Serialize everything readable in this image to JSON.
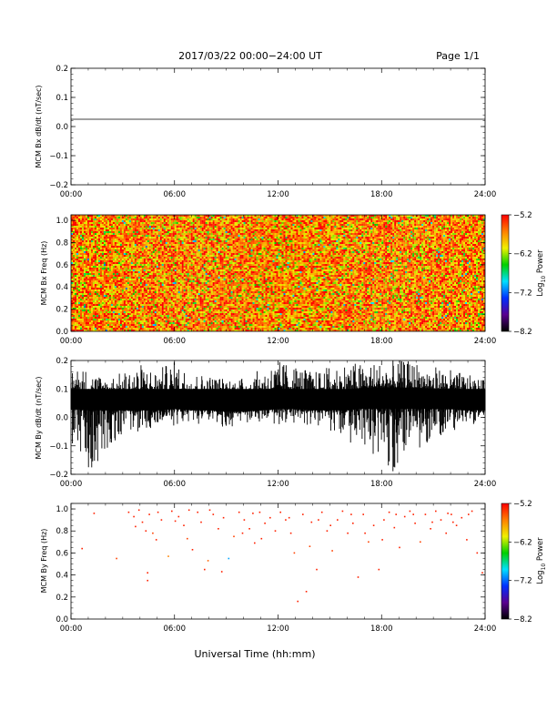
{
  "header": {
    "title": "2017/03/22  00:00−24:00 UT",
    "page": "Page 1/1"
  },
  "xaxis": {
    "label": "Universal Time (hh:mm)",
    "range": [
      0,
      24
    ],
    "tick_values": [
      0,
      6,
      12,
      18,
      24
    ],
    "ticks": [
      "00:00",
      "06:00",
      "12:00",
      "18:00",
      "24:00"
    ]
  },
  "colorbar": {
    "label_main": "Log",
    "label_sub": "10",
    "label_tail": " Power",
    "range": [
      -8.2,
      -5.2
    ],
    "tick_values": [
      -5.2,
      -6.2,
      -7.2,
      -8.2
    ],
    "ticks": [
      "−5.2",
      "−6.2",
      "−7.2",
      "−8.2"
    ],
    "colors": [
      "#000000",
      "#5a0090",
      "#0030ff",
      "#00e0ff",
      "#00d000",
      "#f0f000",
      "#ff8000",
      "#ff0000"
    ]
  },
  "chart_data": [
    {
      "type": "line",
      "title": "",
      "ylabel": "MCM Bx dB/dt (nT/sec)",
      "xlabel": "",
      "xlim": [
        0,
        24
      ],
      "ylim": [
        -0.2,
        0.2
      ],
      "ytick_values": [
        0.2,
        0.1,
        0.0,
        -0.1,
        -0.2
      ],
      "yticks": [
        "0.2",
        "0.1",
        "0.0",
        "−0.1",
        "−0.2"
      ],
      "series": [
        {
          "x": [
            0,
            24
          ],
          "y": [
            0.025,
            0.025
          ]
        }
      ]
    },
    {
      "type": "heatmap",
      "title": "",
      "ylabel": "MCM Bx Freq (Hz)",
      "xlabel": "",
      "xlim": [
        0,
        24
      ],
      "ylim": [
        0,
        1.05
      ],
      "ytick_values": [
        1.0,
        0.8,
        0.6,
        0.4,
        0.2,
        0.0
      ],
      "yticks": [
        "1.0",
        "0.8",
        "0.6",
        "0.4",
        "0.2",
        "0.0"
      ],
      "value_range": [
        -8.2,
        -5.2
      ],
      "description_levels": {
        "dominant_log10_power": -5.6,
        "spread": 0.5
      }
    },
    {
      "type": "line",
      "title": "",
      "ylabel": "MCM By dB/dt (nT/sec)",
      "xlabel": "",
      "xlim": [
        0,
        24
      ],
      "ylim": [
        -0.2,
        0.2
      ],
      "ytick_values": [
        0.2,
        0.1,
        0.0,
        -0.1,
        -0.2
      ],
      "yticks": [
        "0.2",
        "0.1",
        "0.0",
        "−0.1",
        "−0.2"
      ],
      "series": [
        {
          "x": [
            0,
            1,
            2,
            3,
            4,
            5,
            6,
            7,
            8,
            9,
            10,
            11,
            12,
            13,
            14,
            15,
            16,
            17,
            18,
            19,
            20,
            21,
            22,
            23,
            24
          ],
          "y_mean": [
            0.065,
            0.06,
            0.06,
            0.06,
            0.06,
            0.06,
            0.065,
            0.06,
            0.06,
            0.055,
            0.055,
            0.06,
            0.065,
            0.065,
            0.06,
            0.06,
            0.06,
            0.07,
            0.07,
            0.07,
            0.07,
            0.065,
            0.065,
            0.06,
            0.06
          ],
          "y_max": [
            0.19,
            0.17,
            0.14,
            0.16,
            0.19,
            0.17,
            0.2,
            0.16,
            0.15,
            0.14,
            0.14,
            0.17,
            0.2,
            0.19,
            0.16,
            0.18,
            0.2,
            0.19,
            0.2,
            0.2,
            0.2,
            0.18,
            0.17,
            0.15,
            0.13
          ],
          "y_min": [
            -0.1,
            -0.2,
            -0.12,
            -0.06,
            -0.05,
            -0.04,
            -0.03,
            -0.02,
            -0.03,
            -0.04,
            -0.02,
            -0.02,
            -0.03,
            -0.02,
            -0.03,
            -0.05,
            -0.08,
            -0.12,
            -0.2,
            -0.2,
            -0.12,
            -0.08,
            -0.05,
            -0.03,
            -0.02
          ]
        }
      ]
    },
    {
      "type": "scatter",
      "title": "",
      "ylabel": "MCM By Freq (Hz)",
      "xlabel": "",
      "xlim": [
        0,
        24
      ],
      "ylim": [
        0,
        1.05
      ],
      "ytick_values": [
        1.0,
        0.8,
        0.6,
        0.4,
        0.2,
        0.0
      ],
      "yticks": [
        "1.0",
        "0.8",
        "0.6",
        "0.4",
        "0.2",
        "0.0"
      ],
      "value_range": [
        -8.2,
        -5.2
      ],
      "points": [
        [
          0.6,
          0.64,
          -5.3
        ],
        [
          1.3,
          0.96,
          -5.3
        ],
        [
          2.6,
          0.55,
          -5.4
        ],
        [
          3.3,
          0.97,
          -5.3
        ],
        [
          3.6,
          0.93,
          -5.3
        ],
        [
          3.9,
          0.99,
          -5.3
        ],
        [
          4.1,
          0.88,
          -5.3
        ],
        [
          4.3,
          0.8,
          -5.3
        ],
        [
          4.5,
          0.95,
          -5.3
        ],
        [
          4.7,
          0.78,
          -5.4
        ],
        [
          4.9,
          0.72,
          -5.3
        ],
        [
          5.2,
          0.9,
          -5.3
        ],
        [
          4.4,
          0.42,
          -5.3
        ],
        [
          4.4,
          0.35,
          -5.3
        ],
        [
          5.6,
          0.57,
          -5.6
        ],
        [
          5.8,
          0.98,
          -5.3
        ],
        [
          6.2,
          0.93,
          -5.3
        ],
        [
          6.5,
          0.85,
          -5.3
        ],
        [
          6.7,
          0.73,
          -5.4
        ],
        [
          7.0,
          0.63,
          -5.3
        ],
        [
          7.3,
          0.97,
          -5.3
        ],
        [
          7.5,
          0.88,
          -5.3
        ],
        [
          7.7,
          0.45,
          -5.3
        ],
        [
          7.9,
          0.53,
          -5.5
        ],
        [
          8.2,
          0.95,
          -5.3
        ],
        [
          8.5,
          0.82,
          -5.3
        ],
        [
          8.8,
          0.92,
          -5.3
        ],
        [
          9.1,
          0.55,
          -7.0
        ],
        [
          9.4,
          0.75,
          -5.4
        ],
        [
          9.7,
          0.97,
          -5.3
        ],
        [
          10.0,
          0.9,
          -5.3
        ],
        [
          10.3,
          0.82,
          -5.3
        ],
        [
          10.6,
          0.69,
          -5.3
        ],
        [
          10.9,
          0.97,
          -5.3
        ],
        [
          11.2,
          0.87,
          -5.3
        ],
        [
          11.5,
          0.92,
          -5.3
        ],
        [
          11.8,
          0.8,
          -5.3
        ],
        [
          12.1,
          0.97,
          -5.3
        ],
        [
          12.4,
          0.9,
          -5.3
        ],
        [
          12.7,
          0.78,
          -5.3
        ],
        [
          12.9,
          0.6,
          -5.4
        ],
        [
          13.1,
          0.16,
          -5.3
        ],
        [
          13.4,
          0.95,
          -5.3
        ],
        [
          13.6,
          0.25,
          -5.3
        ],
        [
          13.9,
          0.88,
          -5.3
        ],
        [
          14.2,
          0.45,
          -5.3
        ],
        [
          14.5,
          0.97,
          -5.3
        ],
        [
          14.8,
          0.8,
          -5.3
        ],
        [
          15.1,
          0.62,
          -5.4
        ],
        [
          15.4,
          0.9,
          -5.3
        ],
        [
          15.7,
          0.98,
          -5.3
        ],
        [
          16.0,
          0.78,
          -5.3
        ],
        [
          16.3,
          0.87,
          -5.3
        ],
        [
          16.6,
          0.38,
          -5.3
        ],
        [
          16.9,
          0.95,
          -5.3
        ],
        [
          17.2,
          0.7,
          -5.4
        ],
        [
          17.5,
          0.85,
          -5.3
        ],
        [
          17.8,
          0.45,
          -5.3
        ],
        [
          18.1,
          0.9,
          -5.3
        ],
        [
          18.4,
          0.97,
          -5.3
        ],
        [
          18.7,
          0.83,
          -5.3
        ],
        [
          19.0,
          0.65,
          -5.3
        ],
        [
          19.3,
          0.93,
          -5.3
        ],
        [
          19.6,
          0.98,
          -5.3
        ],
        [
          19.9,
          0.87,
          -5.3
        ],
        [
          20.2,
          0.7,
          -5.4
        ],
        [
          20.5,
          0.95,
          -5.3
        ],
        [
          20.8,
          0.82,
          -5.3
        ],
        [
          21.1,
          0.98,
          -5.3
        ],
        [
          21.4,
          0.9,
          -5.3
        ],
        [
          21.7,
          0.78,
          -5.3
        ],
        [
          22.0,
          0.95,
          -5.3
        ],
        [
          22.3,
          0.85,
          -5.3
        ],
        [
          22.6,
          0.92,
          -5.3
        ],
        [
          22.9,
          0.72,
          -5.3
        ],
        [
          23.2,
          0.98,
          -5.3
        ],
        [
          23.5,
          0.6,
          -5.3
        ],
        [
          23.8,
          0.42,
          -5.3
        ],
        [
          5.0,
          0.97,
          -5.3
        ],
        [
          6.0,
          0.89,
          -5.3
        ],
        [
          8.0,
          0.99,
          -5.3
        ],
        [
          9.9,
          0.78,
          -5.3
        ],
        [
          11.0,
          0.73,
          -5.3
        ],
        [
          12.6,
          0.92,
          -5.3
        ],
        [
          13.8,
          0.66,
          -5.4
        ],
        [
          15.0,
          0.85,
          -5.3
        ],
        [
          16.2,
          0.95,
          -5.3
        ],
        [
          17.0,
          0.78,
          -5.3
        ],
        [
          18.0,
          0.72,
          -5.3
        ],
        [
          19.8,
          0.95,
          -5.3
        ],
        [
          20.9,
          0.88,
          -5.3
        ],
        [
          22.1,
          0.88,
          -5.3
        ],
        [
          23.0,
          0.95,
          -5.3
        ],
        [
          3.7,
          0.84,
          -5.3
        ],
        [
          6.8,
          0.99,
          -5.3
        ],
        [
          10.5,
          0.96,
          -5.3
        ],
        [
          14.3,
          0.9,
          -5.3
        ],
        [
          18.8,
          0.95,
          -5.3
        ],
        [
          21.8,
          0.96,
          -5.3
        ],
        [
          8.7,
          0.43,
          -5.3
        ]
      ]
    }
  ]
}
